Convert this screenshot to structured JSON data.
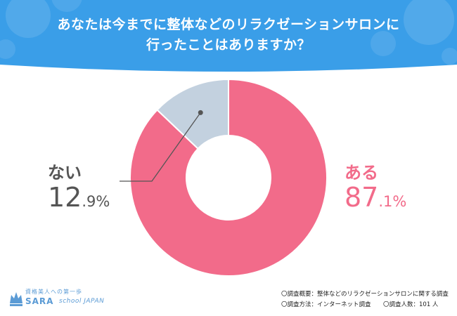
{
  "header": {
    "title_line1": "あなたは今までに整体などのリラクゼーションサロンに",
    "title_line2": "行ったことはありますか？",
    "color": "#3a9ee8"
  },
  "chart_data": {
    "type": "pie",
    "title": "あなたは今までに整体などのリラクゼーションサロンに行ったことはありますか？",
    "slices": [
      {
        "name": "ある",
        "value": 87.1,
        "number": "87",
        "decimal": ".1%",
        "color": "#f26b8a"
      },
      {
        "name": "ない",
        "value": 12.9,
        "number": "12",
        "decimal": ".9%",
        "color": "#c3d1df"
      }
    ]
  },
  "footer": {
    "note1": "〇調査概要：整体などのリラクゼーションサロンに関する調査",
    "note2": "〇調査方法：インターネット調査",
    "note3": "〇調査人数：101 人"
  },
  "logo": {
    "tagline": "資格美人への第一歩",
    "brand": "SARA",
    "brand_sub": "school JAPAN",
    "color": "#5b9bd5"
  }
}
